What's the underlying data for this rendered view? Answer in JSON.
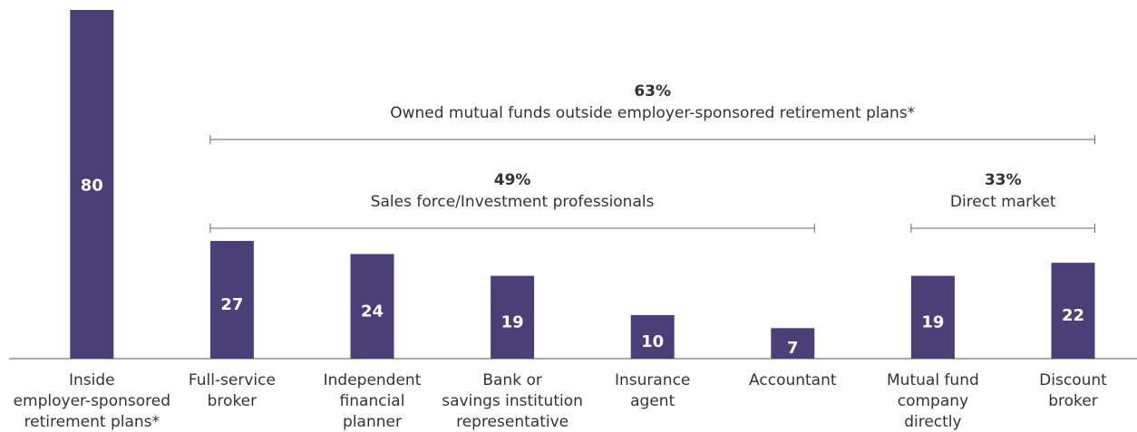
{
  "chart_data": {
    "type": "bar",
    "categories": [
      "Inside\nemployer-sponsored\nretirement plans*",
      "Full-service\nbroker",
      "Independent\nfinancial\nplanner",
      "Bank or\nsavings institution\nrepresentative",
      "Insurance\nagent",
      "Accountant",
      "Mutual fund\ncompany\ndirectly",
      "Discount\nbroker"
    ],
    "values": [
      80,
      27,
      24,
      19,
      10,
      7,
      19,
      22
    ],
    "color": "#4b3f78",
    "ylim": [
      0,
      80
    ],
    "annotations": [
      {
        "text": "63%",
        "label": "Owned mutual funds outside employer-sponsored retirement plans*"
      },
      {
        "text": "49%",
        "label": "Sales force/Investment professionals"
      },
      {
        "text": "33%",
        "label": "Direct market"
      }
    ]
  }
}
